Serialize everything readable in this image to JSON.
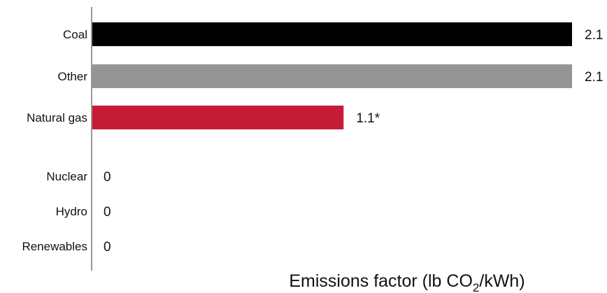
{
  "chart_data": {
    "type": "bar",
    "orientation": "horizontal",
    "categories": [
      "Coal",
      "Other",
      "Natural gas",
      "Nuclear",
      "Hydro",
      "Renewables"
    ],
    "values": [
      2.1,
      2.1,
      1.1,
      0,
      0,
      0
    ],
    "value_labels": [
      "2.1",
      "2.1",
      "1.1*",
      "0",
      "0",
      "0"
    ],
    "colors": [
      "#000000",
      "#959595",
      "#c41c37",
      "#000000",
      "#000000",
      "#000000"
    ],
    "xlabel_main": "Emissions factor (lb CO",
    "xlabel_sub": "2",
    "xlabel_tail": "/kWh)",
    "xlim": [
      0,
      2.1
    ],
    "grid": false,
    "legend": "none"
  }
}
